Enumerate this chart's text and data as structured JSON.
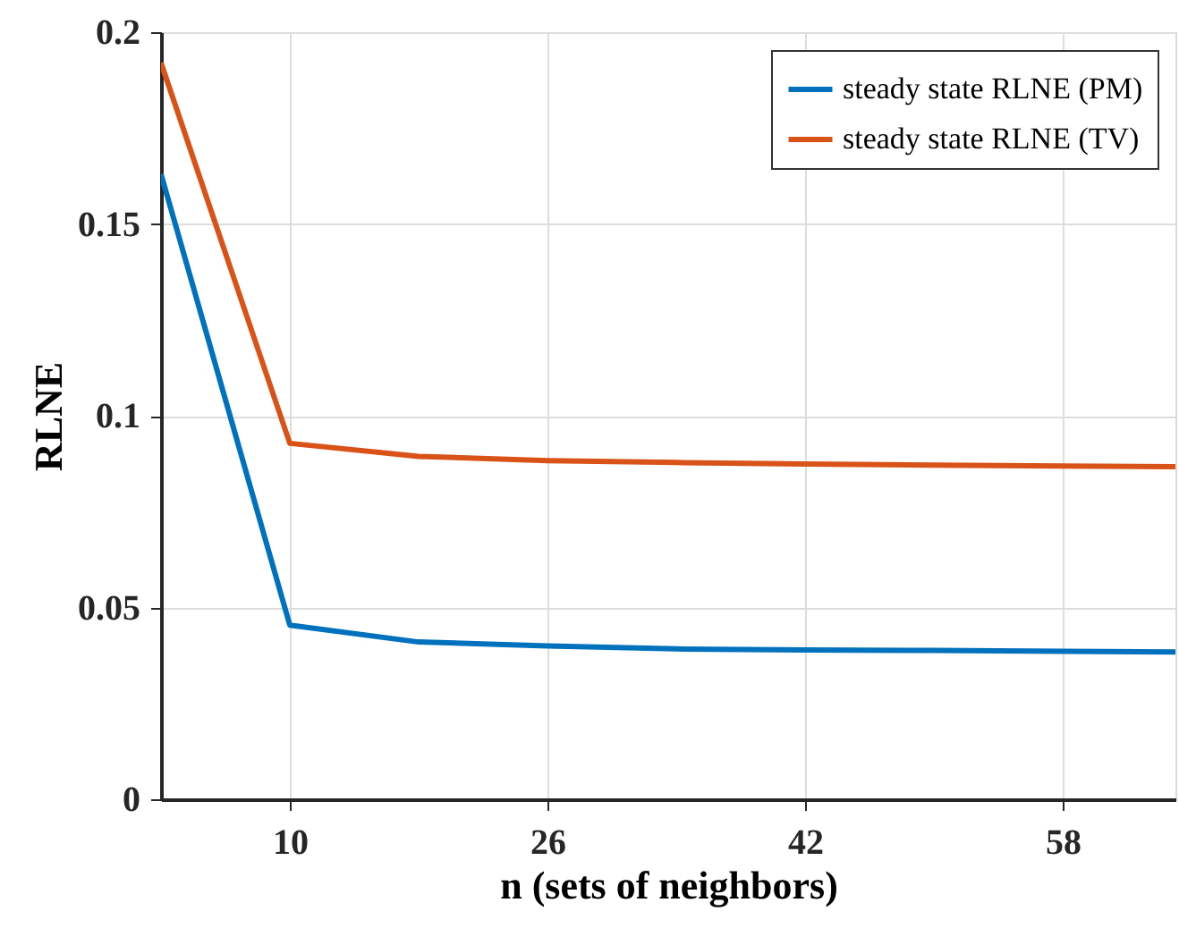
{
  "chart_data": {
    "type": "line",
    "xlabel": "n (sets of neighbors)",
    "ylabel": "RLNE",
    "x": [
      2,
      10,
      18,
      26,
      34,
      42,
      50,
      58,
      65
    ],
    "series": [
      {
        "name": "steady state RLNE (PM)",
        "color": "#0072bd",
        "values": [
          0.163,
          0.0454,
          0.041,
          0.04,
          0.0392,
          0.0389,
          0.0388,
          0.0386,
          0.0384
        ]
      },
      {
        "name": "steady state RLNE (TV)",
        "color": "#d95319",
        "values": [
          0.192,
          0.0928,
          0.0894,
          0.0883,
          0.0878,
          0.0874,
          0.0871,
          0.0869,
          0.0867
        ]
      }
    ],
    "xlim": [
      2,
      65
    ],
    "ylim": [
      0,
      0.2
    ],
    "xticks": [
      10,
      26,
      42,
      58
    ],
    "yticks": [
      0,
      0.05,
      0.1,
      0.15,
      0.2
    ],
    "grid": true,
    "legend": "top right",
    "marker": "none",
    "line_style": "solid"
  }
}
